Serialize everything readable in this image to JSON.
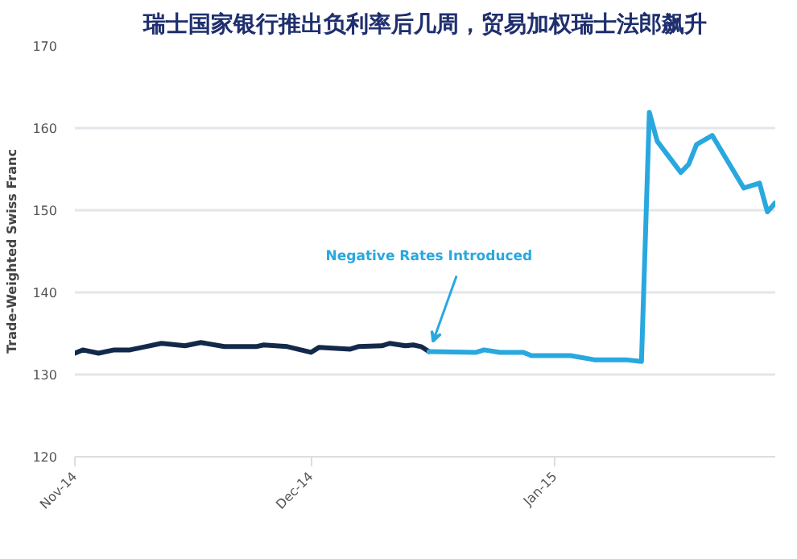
{
  "chart_data": {
    "type": "line",
    "title": "瑞士国家银行推出负利率后几周，贸易加权瑞士法郎飙升",
    "ylabel": "Trade-Weighted Swiss Franc",
    "xlim": [
      "2014-11-01",
      "2015-01-29"
    ],
    "xticks": [
      {
        "value": "2014-11-01",
        "label": "Nov-14"
      },
      {
        "value": "2014-12-01",
        "label": "Dec-14"
      },
      {
        "value": "2015-01-01",
        "label": "Jan-15"
      }
    ],
    "ylim": [
      120,
      170
    ],
    "yticks": [
      120,
      130,
      140,
      150,
      160,
      170
    ],
    "grid": "y",
    "marker": "none",
    "line_style": "solid",
    "series": [
      {
        "color": "#13294b",
        "x": [
          "2014-11-01",
          "2014-11-02",
          "2014-11-04",
          "2014-11-06",
          "2014-11-08",
          "2014-11-10",
          "2014-11-12",
          "2014-11-15",
          "2014-11-17",
          "2014-11-20",
          "2014-11-24",
          "2014-11-25",
          "2014-11-28",
          "2014-12-01",
          "2014-12-02",
          "2014-12-06",
          "2014-12-07",
          "2014-12-10",
          "2014-12-11",
          "2014-12-13",
          "2014-12-14",
          "2014-12-15",
          "2014-12-16"
        ],
        "values": [
          132.6,
          133.0,
          132.6,
          133.0,
          133.0,
          133.4,
          133.8,
          133.5,
          133.9,
          133.4,
          133.4,
          133.6,
          133.4,
          132.7,
          133.3,
          133.1,
          133.4,
          133.5,
          133.8,
          133.5,
          133.6,
          133.4,
          132.8
        ]
      },
      {
        "color": "#29a8e0",
        "x": [
          "2014-12-16",
          "2014-12-22",
          "2014-12-23",
          "2014-12-25",
          "2014-12-28",
          "2014-12-29",
          "2015-01-03",
          "2015-01-06",
          "2015-01-10",
          "2015-01-12",
          "2015-01-13",
          "2015-01-14",
          "2015-01-17",
          "2015-01-18",
          "2015-01-19",
          "2015-01-21",
          "2015-01-25",
          "2015-01-27",
          "2015-01-28",
          "2015-01-29"
        ],
        "values": [
          132.8,
          132.7,
          133.0,
          132.7,
          132.7,
          132.3,
          132.3,
          131.8,
          131.8,
          131.6,
          161.9,
          158.4,
          154.6,
          155.6,
          158.0,
          159.1,
          152.7,
          153.3,
          149.8,
          150.9
        ]
      }
    ],
    "annotations": [
      {
        "text": "Negative Rates Introduced",
        "x": "2014-12-16",
        "y": 132.8
      }
    ]
  }
}
